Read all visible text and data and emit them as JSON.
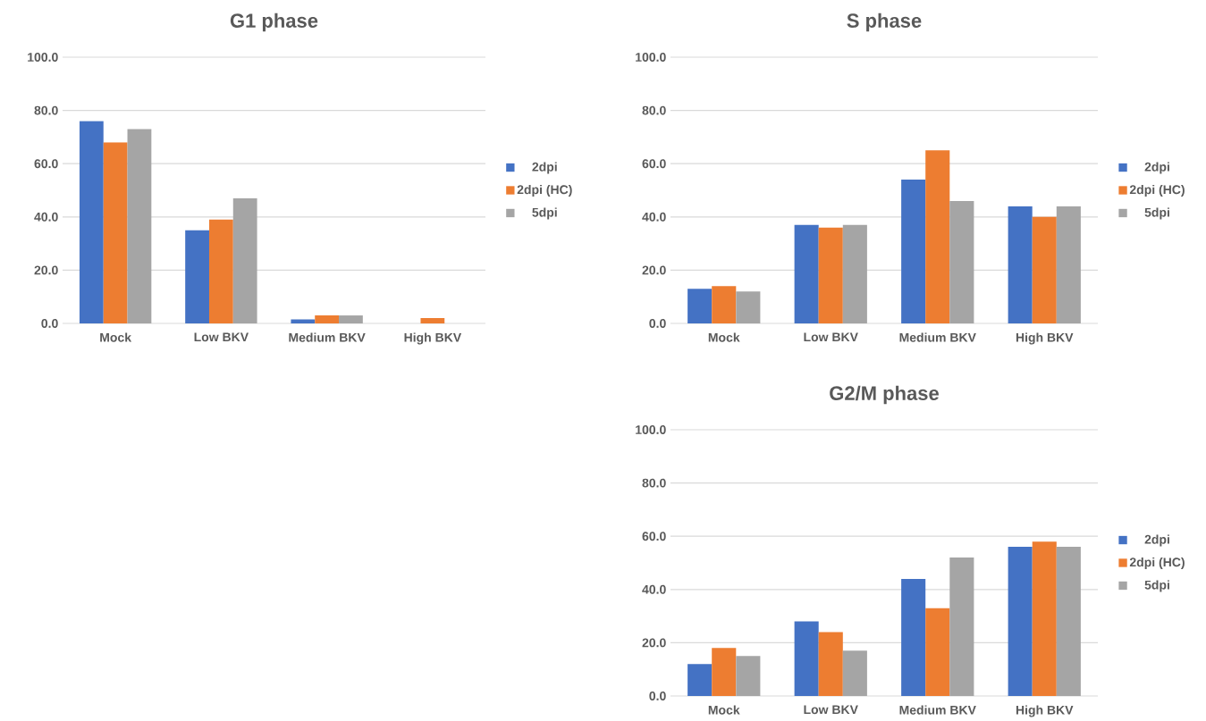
{
  "chart_data": [
    {
      "type": "bar",
      "title": "G1 phase",
      "categories": [
        "Mock",
        "Low BKV",
        "Medium BKV",
        "High BKV"
      ],
      "series": [
        {
          "name": "2dpi",
          "color": "#4472c4",
          "values": [
            76,
            35,
            1.5,
            0
          ]
        },
        {
          "name": "2dpi (HC)",
          "color": "#ed7d31",
          "values": [
            68,
            39,
            3,
            2
          ]
        },
        {
          "name": "5dpi",
          "color": "#a5a5a5",
          "values": [
            73,
            47,
            3,
            0
          ]
        }
      ],
      "ylim": [
        0,
        100
      ],
      "yticks": [
        {
          "value": 0,
          "label": "0.0"
        },
        {
          "value": 20,
          "label": "20.0"
        },
        {
          "value": 40,
          "label": "40.0"
        },
        {
          "value": 60,
          "label": "60.0"
        },
        {
          "value": 80,
          "label": "80.0"
        },
        {
          "value": 100,
          "label": "100.0"
        }
      ],
      "grid": "y",
      "legend": "right"
    },
    {
      "type": "bar",
      "title": "S phase",
      "categories": [
        "Mock",
        "Low BKV",
        "Medium BKV",
        "High BKV"
      ],
      "series": [
        {
          "name": "2dpi",
          "color": "#4472c4",
          "values": [
            13,
            37,
            54,
            44
          ]
        },
        {
          "name": "2dpi (HC)",
          "color": "#ed7d31",
          "values": [
            14,
            36,
            65,
            40
          ]
        },
        {
          "name": "5dpi",
          "color": "#a5a5a5",
          "values": [
            12,
            37,
            46,
            44
          ]
        }
      ],
      "ylim": [
        0,
        100
      ],
      "yticks": [
        {
          "value": 0,
          "label": "0.0"
        },
        {
          "value": 20,
          "label": "20.0"
        },
        {
          "value": 40,
          "label": "40.0"
        },
        {
          "value": 60,
          "label": "60.0"
        },
        {
          "value": 80,
          "label": "80.0"
        },
        {
          "value": 100,
          "label": "100.0"
        }
      ],
      "grid": "y",
      "legend": "right"
    },
    {
      "type": "bar",
      "title": "G2/M phase",
      "categories": [
        "Mock",
        "Low BKV",
        "Medium BKV",
        "High BKV"
      ],
      "series": [
        {
          "name": "2dpi",
          "color": "#4472c4",
          "values": [
            12,
            28,
            44,
            56
          ]
        },
        {
          "name": "2dpi (HC)",
          "color": "#ed7d31",
          "values": [
            18,
            24,
            33,
            58
          ]
        },
        {
          "name": "5dpi",
          "color": "#a5a5a5",
          "values": [
            15,
            17,
            52,
            56
          ]
        }
      ],
      "ylim": [
        0,
        100
      ],
      "yticks": [
        {
          "value": 0,
          "label": "0.0"
        },
        {
          "value": 20,
          "label": "20.0"
        },
        {
          "value": 40,
          "label": "40.0"
        },
        {
          "value": 60,
          "label": "60.0"
        },
        {
          "value": 80,
          "label": "80.0"
        },
        {
          "value": 100,
          "label": "100.0"
        }
      ],
      "grid": "y",
      "legend": "right"
    }
  ]
}
